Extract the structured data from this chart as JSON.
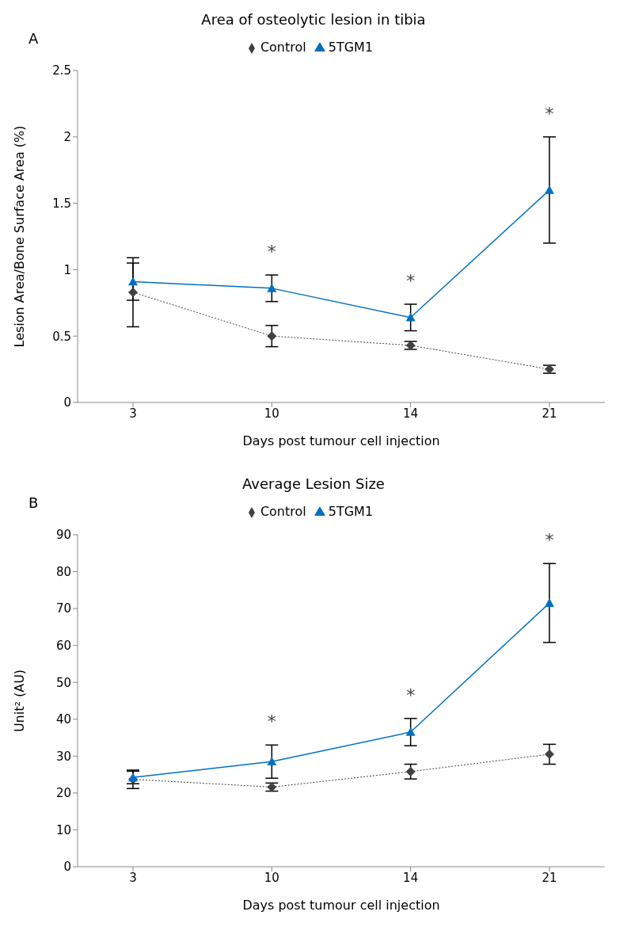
{
  "chart_data": [
    {
      "type": "line",
      "title": "Area of osteolytic lesion in tibia",
      "xlabel": "Days post tumour cell injection",
      "ylabel": "Lesion Area/Bone Surface Area (%)",
      "categories": [
        "3",
        "10",
        "14",
        "21"
      ],
      "ylim": [
        0,
        2.5
      ],
      "yticks": [
        0,
        0.5,
        1,
        1.5,
        2,
        2.5
      ],
      "grid": false,
      "legend": "top",
      "series": [
        {
          "name": "Control",
          "color": "#404040",
          "marker": "diamond",
          "line_style": "dotted",
          "values": [
            0.83,
            0.5,
            0.43,
            0.25
          ],
          "errors": [
            0.26,
            0.08,
            0.03,
            0.03
          ]
        },
        {
          "name": "5TGM1",
          "color": "#0070c0",
          "marker": "triangle",
          "line_style": "solid",
          "values": [
            0.91,
            0.86,
            0.64,
            1.6
          ],
          "errors": [
            0.14,
            0.1,
            0.1,
            0.4
          ]
        }
      ],
      "annotations": [
        "A",
        {
          "text": "*",
          "x": "10",
          "y": 0.96
        },
        {
          "text": "*",
          "x": "14",
          "y": 0.74
        },
        {
          "text": "*",
          "x": "21",
          "y": 2.0
        }
      ]
    },
    {
      "type": "line",
      "title": "Average Lesion Size",
      "xlabel": "Days post tumour cell injection",
      "ylabel": "Unit² (AU)",
      "categories": [
        "3",
        "10",
        "14",
        "21"
      ],
      "ylim": [
        0,
        90
      ],
      "yticks": [
        0,
        10,
        20,
        30,
        40,
        50,
        60,
        70,
        80,
        90
      ],
      "grid": false,
      "legend": "top",
      "series": [
        {
          "name": "Control",
          "color": "#404040",
          "marker": "diamond",
          "line_style": "dotted",
          "values": [
            23.7,
            21.6,
            25.8,
            30.5
          ],
          "errors": [
            2.5,
            1.1,
            2,
            2.7
          ]
        },
        {
          "name": "5TGM1",
          "color": "#0070c0",
          "marker": "triangle",
          "line_style": "solid",
          "values": [
            24.2,
            28.5,
            36.5,
            71.5
          ],
          "errors": [
            1.7,
            4.5,
            3.7,
            10.7
          ]
        }
      ],
      "annotations": [
        "B",
        {
          "text": "*",
          "x": "10",
          "y": 33
        },
        {
          "text": "*",
          "x": "14",
          "y": 40.2
        },
        {
          "text": "*",
          "x": "21",
          "y": 82.2
        }
      ]
    }
  ]
}
